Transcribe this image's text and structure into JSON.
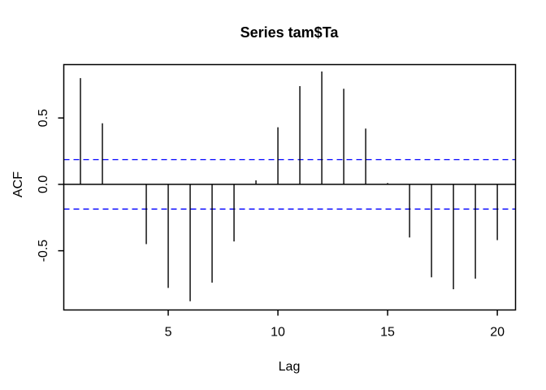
{
  "chart_data": {
    "type": "bar",
    "subtype": "acf-stick-plot",
    "title": "Series tam$Ta",
    "xlabel": "Lag",
    "ylabel": "ACF",
    "x": [
      1,
      2,
      3,
      4,
      5,
      6,
      7,
      8,
      9,
      10,
      11,
      12,
      13,
      14,
      15,
      16,
      17,
      18,
      19,
      20
    ],
    "values": [
      0.8,
      0.46,
      0.0,
      -0.45,
      -0.78,
      -0.88,
      -0.74,
      -0.43,
      0.03,
      0.43,
      0.74,
      0.85,
      0.72,
      0.42,
      0.01,
      -0.4,
      -0.7,
      -0.79,
      -0.71,
      -0.42
    ],
    "confidence_band": 0.186,
    "confidence_band_style": "dashed",
    "x_ticks": [
      5,
      10,
      15,
      20
    ],
    "y_tick_values": [
      -0.5,
      0.0,
      0.5
    ],
    "y_tick_labels": [
      "-0.5",
      "0.0",
      "0.5"
    ],
    "xlim": [
      0.24,
      20.83
    ],
    "ylim": [
      -0.946,
      0.902
    ],
    "grid": false,
    "legend_position": "none",
    "colors": {
      "bar": "#000000",
      "axis": "#000000",
      "confidence_band": "#0000FF",
      "background": "#FFFFFF"
    }
  }
}
